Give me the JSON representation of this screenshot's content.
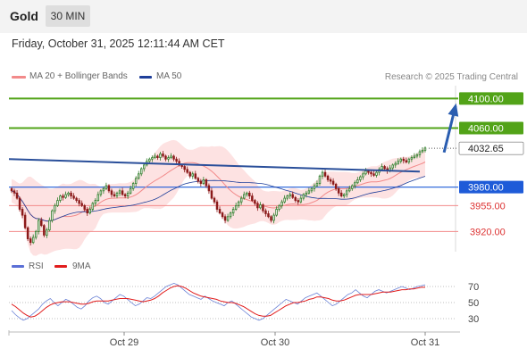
{
  "header": {
    "title": "Gold",
    "timeframe": "30 MIN"
  },
  "timestamp": "Friday, October 31, 2025 12:11:44 AM CET",
  "legend": {
    "ma20_label": "MA 20 + Bollinger Bands",
    "ma50_label": "MA 50",
    "credit": "Research © 2025 Trading Central",
    "rsi_label": "RSI",
    "rsi_ma_label": "9MA"
  },
  "colors": {
    "ma20": "#f28a8a",
    "ma50": "#1f3f9a",
    "band": "#fde2e2",
    "resistance": "#52a318",
    "support": "#1e5bd8",
    "pivot_level": "#f28a8a",
    "trend": "#2a4f9a",
    "candle_up": "#2f7d2a",
    "candle_down": "#8b1a1a"
  },
  "chart_data": [
    {
      "type": "candlestick",
      "title": "",
      "ylim": [
        3895,
        4115
      ],
      "x_ticks": [
        "Oct 29",
        "Oct 30",
        "Oct 31"
      ],
      "levels": [
        {
          "value": 4100.0,
          "label": "4100.00",
          "kind": "resistance"
        },
        {
          "value": 4060.0,
          "label": "4060.00",
          "kind": "resistance"
        },
        {
          "value": 4032.65,
          "label": "4032.65",
          "kind": "last"
        },
        {
          "value": 3980.0,
          "label": "3980.00",
          "kind": "pivot"
        },
        {
          "value": 3955.0,
          "label": "3955.00",
          "kind": "support"
        },
        {
          "value": 3920.0,
          "label": "3920.00",
          "kind": "support"
        }
      ],
      "trendline": {
        "from": [
          0,
          4018
        ],
        "to": [
          151,
          4001
        ]
      },
      "forecast_arrow": {
        "from": [
          158,
          4027
        ],
        "to": [
          172,
          4090
        ]
      },
      "close": [
        3975,
        3972,
        3965,
        3950,
        3942,
        3925,
        3910,
        3905,
        3912,
        3920,
        3935,
        3928,
        3915,
        3922,
        3935,
        3948,
        3955,
        3962,
        3968,
        3966,
        3970,
        3972,
        3968,
        3965,
        3962,
        3958,
        3955,
        3950,
        3945,
        3950,
        3958,
        3962,
        3970,
        3975,
        3978,
        3982,
        3975,
        3970,
        3968,
        3972,
        3975,
        3970,
        3968,
        3972,
        3978,
        3985,
        3992,
        3998,
        4005,
        4010,
        4015,
        4018,
        4020,
        4022,
        4020,
        4025,
        4022,
        4018,
        4020,
        4022,
        4018,
        4015,
        4010,
        4008,
        4004,
        4000,
        3995,
        3998,
        3992,
        3988,
        3985,
        3990,
        3982,
        3975,
        3965,
        3960,
        3950,
        3945,
        3940,
        3935,
        3940,
        3945,
        3950,
        3955,
        3960,
        3965,
        3970,
        3972,
        3968,
        3962,
        3958,
        3952,
        3956,
        3948,
        3944,
        3940,
        3935,
        3942,
        3950,
        3955,
        3960,
        3965,
        3968,
        3970,
        3966,
        3962,
        3960,
        3965,
        3970,
        3972,
        3975,
        3978,
        3982,
        3985,
        3995,
        4000,
        3995,
        3990,
        3988,
        3984,
        3978,
        3972,
        3968,
        3970,
        3975,
        3978,
        3982,
        3986,
        3990,
        3994,
        3998,
        4002,
        4000,
        3998,
        3996,
        4000,
        4004,
        4008,
        4005,
        4002,
        4006,
        4010,
        4012,
        4015,
        4018,
        4016,
        4014,
        4018,
        4020,
        4022,
        4024,
        4028,
        4030,
        4033
      ]
    },
    {
      "type": "line",
      "title": "",
      "ylim": [
        20,
        80
      ],
      "y_ticks": [
        70,
        50,
        30
      ],
      "series": [
        {
          "name": "RSI",
          "values": [
            40,
            35,
            31,
            28,
            30,
            34,
            38,
            42,
            48,
            52,
            55,
            50,
            46,
            50,
            54,
            52,
            48,
            44,
            42,
            46,
            52,
            56,
            58,
            55,
            50,
            48,
            52,
            56,
            60,
            58,
            54,
            50,
            46,
            48,
            52,
            56,
            55,
            58,
            62,
            66,
            70,
            72,
            74,
            72,
            68,
            64,
            60,
            58,
            56,
            54,
            58,
            55,
            52,
            50,
            48,
            46,
            50,
            52,
            48,
            44,
            40,
            36,
            32,
            30,
            28,
            30,
            34,
            38,
            42,
            46,
            50,
            54,
            52,
            50,
            48,
            52,
            56,
            58,
            60,
            62,
            58,
            54,
            50,
            46,
            48,
            52,
            56,
            60,
            62,
            66,
            62,
            58,
            56,
            60,
            64,
            66,
            64,
            62,
            64,
            66,
            68,
            70,
            68,
            66,
            68,
            70,
            71,
            72
          ]
        },
        {
          "name": "9MA",
          "values": [
            48,
            45,
            41,
            37,
            34,
            32,
            33,
            36,
            40,
            44,
            47,
            49,
            50,
            51,
            51,
            51,
            50,
            49,
            48,
            48,
            49,
            51,
            52,
            52,
            52,
            52,
            53,
            54,
            55,
            55,
            55,
            54,
            53,
            52,
            51,
            52,
            53,
            55,
            58,
            62,
            65,
            68,
            70,
            71,
            70,
            68,
            65,
            62,
            60,
            58,
            57,
            56,
            55,
            54,
            52,
            51,
            50,
            50,
            49,
            47,
            45,
            42,
            39,
            36,
            34,
            33,
            33,
            34,
            37,
            40,
            43,
            46,
            48,
            50,
            50,
            51,
            52,
            54,
            55,
            57,
            57,
            56,
            55,
            53,
            52,
            52,
            53,
            55,
            57,
            59,
            60,
            60,
            60,
            60,
            61,
            62,
            63,
            63,
            63,
            64,
            65,
            66,
            66,
            67,
            67,
            68,
            69,
            69
          ]
        }
      ]
    }
  ]
}
